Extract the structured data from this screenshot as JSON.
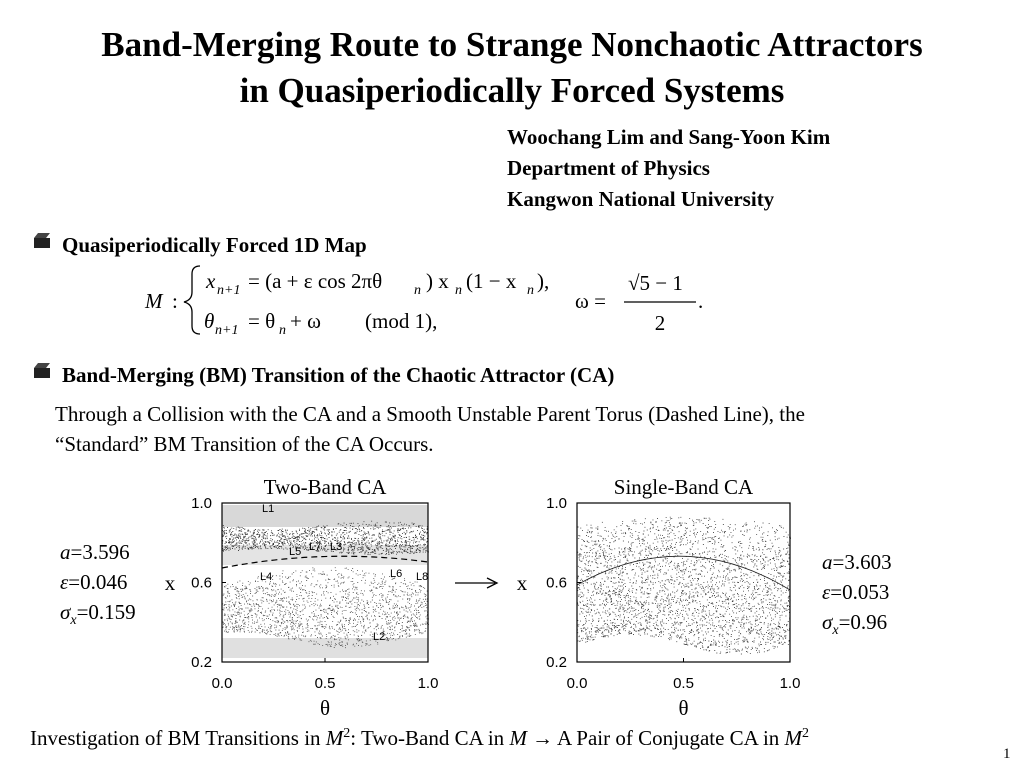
{
  "title": [
    "Band-Merging Route to Strange Nonchaotic Attractors",
    "in Quasiperiodically Forced Systems"
  ],
  "authors": [
    "Woochang Lim and Sang-Yoon Kim",
    "Department of Physics",
    "Kangwon National University"
  ],
  "sections": [
    {
      "heading": "Quasiperiodically Forced 1D Map",
      "equation": [
        "M",
        ":",
        "x",
        "n+1",
        "= (a + ε cos 2πθ",
        "n",
        ") x",
        "n",
        "(1 − x",
        "n",
        "),",
        "θ",
        "n+1",
        "= θ",
        "n",
        "+ ω",
        "(mod 1),",
        "ω =",
        "√5 − 1",
        "2",
        "."
      ]
    },
    {
      "heading": "Band-Merging (BM) Transition of the Chaotic Attractor (CA)",
      "text": [
        "Through a Collision with the CA and a Smooth Unstable Parent Torus (Dashed Line), the",
        "“Standard” BM Transition of the CA Occurs."
      ]
    }
  ],
  "figures": [
    {
      "title": "Two-Band CA",
      "xlabel": "θ",
      "ylabel": "x",
      "xticks": [
        "0.0",
        "0.5",
        "1.0"
      ],
      "yticks": [
        "0.2",
        "0.6",
        "1.0"
      ],
      "labels": [
        "L1",
        "L2",
        "L3",
        "L4",
        "L5",
        "L6",
        "L7",
        "L8"
      ],
      "params": [
        {
          "name": "a",
          "value": "=3.596"
        },
        {
          "name": "ε",
          "value": "=0.046"
        },
        {
          "name": "σ",
          "sub": "x",
          "value": "=0.159"
        }
      ]
    },
    {
      "title": "Single-Band CA",
      "xlabel": "θ",
      "ylabel": "x",
      "xticks": [
        "0.0",
        "0.5",
        "1.0"
      ],
      "yticks": [
        "0.2",
        "0.6",
        "1.0"
      ],
      "params": [
        {
          "name": "a",
          "value": "=3.603"
        },
        {
          "name": "ε",
          "value": "=0.053"
        },
        {
          "name": "σ",
          "sub": "x",
          "value": "=0.96"
        }
      ]
    }
  ],
  "caption": {
    "text1": "Investigation of BM Transitions in ",
    "M1": "M",
    "sup1": "2",
    "text2": ": Two-Band CA in ",
    "M2": "M",
    "arrow": "→",
    "text3": " A Pair of Conjugate CA in ",
    "M3": "M",
    "sup2": "2"
  },
  "page_number": "1"
}
